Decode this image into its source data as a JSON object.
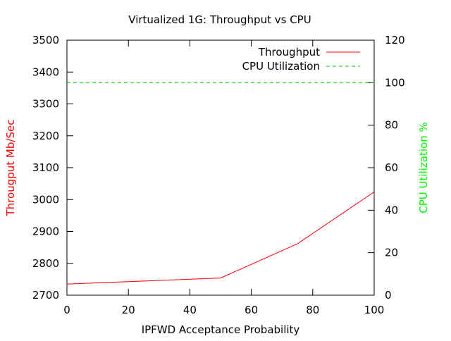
{
  "chart_data": {
    "type": "line",
    "title": "Virtualized 1G: Throughput vs CPU",
    "xlabel": "IPFWD Acceptance Probability",
    "ylabel": "Througput Mb/Sec",
    "y2label": "CPU Utilization %",
    "xlim": [
      0,
      100
    ],
    "ylim": [
      2700,
      3500
    ],
    "y2lim": [
      0,
      120
    ],
    "x_ticks": [
      0,
      20,
      40,
      60,
      80,
      100
    ],
    "y_ticks": [
      2700,
      2800,
      2900,
      3000,
      3100,
      3200,
      3300,
      3400,
      3500
    ],
    "y2_ticks": [
      0,
      20,
      40,
      60,
      80,
      100,
      120
    ],
    "grid": false,
    "legend_position": "top-right",
    "ylabel_color": "#ff0000",
    "y2label_color": "#00ff00",
    "series": [
      {
        "name": "Throughput",
        "axis": "left",
        "color": "#ff0000",
        "dash": "solid",
        "x": [
          0,
          50,
          75,
          100
        ],
        "y": [
          2735,
          2754,
          2861,
          3024
        ]
      },
      {
        "name": "CPU Utilization",
        "axis": "right",
        "color": "#00cc00",
        "dash": "dashed",
        "x": [
          0,
          25,
          50,
          75,
          100
        ],
        "y": [
          100,
          100,
          100,
          100,
          100
        ]
      }
    ]
  }
}
